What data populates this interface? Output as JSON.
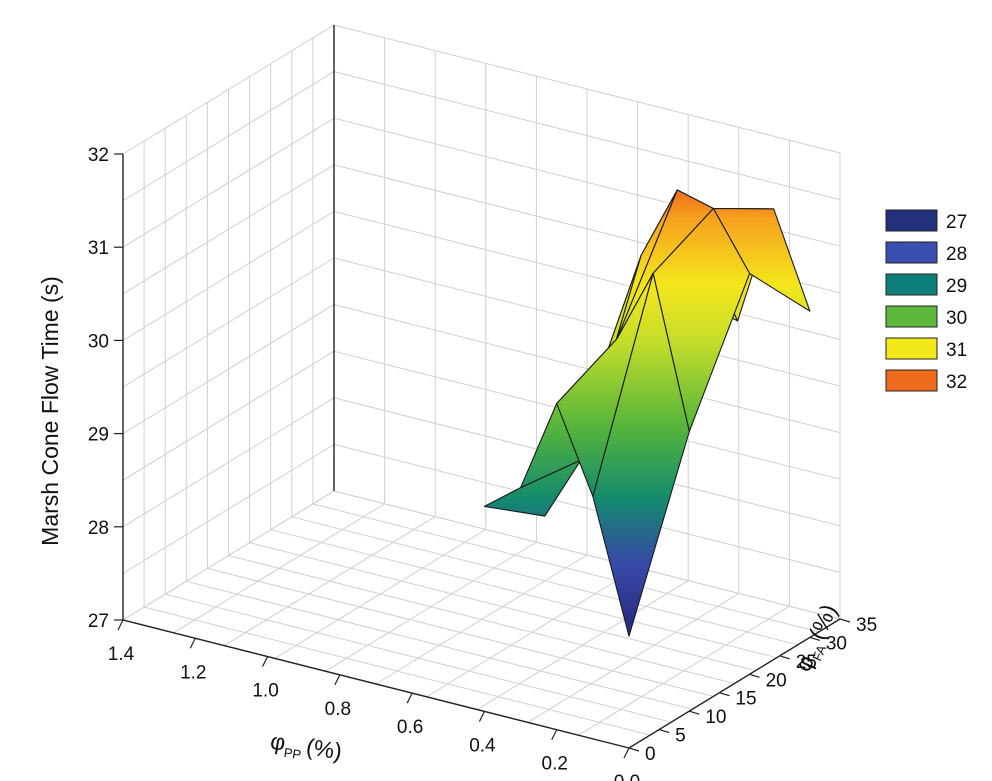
{
  "chart_data": {
    "type": "surface3d",
    "zlabel": "Marsh Cone Flow Time (s)",
    "xlabel_main": "φ",
    "xlabel_sub": "PP",
    "xlabel_unit": "(%)",
    "ylabel_main": "φ",
    "ylabel_sub": "FA",
    "ylabel_unit": "(%)",
    "zlim": [
      27,
      32
    ],
    "xlim": [
      0.0,
      1.4
    ],
    "ylim": [
      0,
      35
    ],
    "z_ticks": [
      "27",
      "28",
      "29",
      "30",
      "31",
      "32"
    ],
    "x_ticks": [
      "1.4",
      "1.2",
      "1.0",
      "0.8",
      "0.6",
      "0.4",
      "0.2",
      "0.0"
    ],
    "y_ticks": [
      "0",
      "5",
      "10",
      "15",
      "20",
      "25",
      "30",
      "35"
    ],
    "grid": true,
    "legend_position": "right",
    "legend": [
      {
        "label": "27",
        "color": "#22307e"
      },
      {
        "label": "28",
        "color": "#3a4fb0"
      },
      {
        "label": "29",
        "color": "#0e7f7a"
      },
      {
        "label": "30",
        "color": "#5cb83a"
      },
      {
        "label": "31",
        "color": "#f2e81a"
      },
      {
        "label": "32",
        "color": "#ee6a1c"
      }
    ],
    "pp_values": [
      0.0,
      0.1,
      0.2,
      0.3,
      0.4
    ],
    "fa_values": [
      0,
      10,
      20,
      30
    ],
    "z_grid": [
      [
        28.2,
        30.0,
        31.3,
        30.5
      ],
      [
        29.6,
        31.6,
        31.9,
        31.5
      ],
      [
        30.5,
        30.8,
        32.0,
        30.2
      ],
      [
        29.5,
        29.4,
        31.2,
        30.3
      ],
      [
        29.2,
        28.7,
        30.0,
        29.8
      ]
    ]
  }
}
